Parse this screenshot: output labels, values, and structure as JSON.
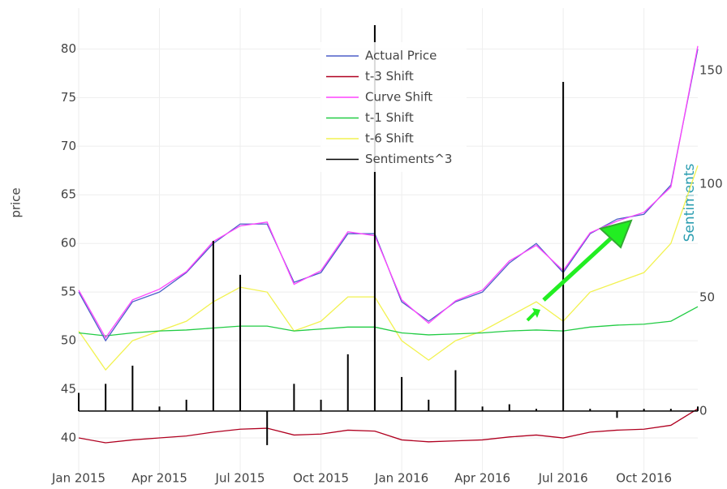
{
  "chart_data": {
    "type": "line",
    "ylabel": "price",
    "y2label": "Sentiments",
    "x": [
      "2015-01",
      "2015-02",
      "2015-03",
      "2015-04",
      "2015-05",
      "2015-06",
      "2015-07",
      "2015-08",
      "2015-09",
      "2015-10",
      "2015-11",
      "2015-12",
      "2016-01",
      "2016-02",
      "2016-03",
      "2016-04",
      "2016-05",
      "2016-06",
      "2016-07",
      "2016-08",
      "2016-09",
      "2016-10",
      "2016-11",
      "2016-12"
    ],
    "xlim": [
      "2015-01",
      "2016-12"
    ],
    "xticks": [
      {
        "value": "2015-01",
        "label": "Jan 2015"
      },
      {
        "value": "2015-04",
        "label": "Apr 2015"
      },
      {
        "value": "2015-07",
        "label": "Jul 2015"
      },
      {
        "value": "2015-10",
        "label": "Oct 2015"
      },
      {
        "value": "2016-01",
        "label": "Jan 2016"
      },
      {
        "value": "2016-04",
        "label": "Apr 2016"
      },
      {
        "value": "2016-07",
        "label": "Jul 2016"
      },
      {
        "value": "2016-10",
        "label": "Oct 2016"
      }
    ],
    "ylim": [
      36.25,
      84.2
    ],
    "yticks": [
      40,
      45,
      50,
      55,
      60,
      65,
      70,
      75,
      80
    ],
    "y2lim": [
      -27.9,
      177.5
    ],
    "y2ticks": [
      0,
      50,
      100,
      150
    ],
    "grid": true,
    "legend": "top",
    "series": [
      {
        "name": "Actual Price",
        "color": "#4d5fc9",
        "values": [
          55,
          50,
          54,
          55,
          57,
          60,
          62,
          62,
          56,
          57,
          61,
          61,
          54,
          52,
          54,
          55,
          58,
          60,
          57,
          61,
          62.5,
          63,
          66,
          80
        ]
      },
      {
        "name": "t-3 Shift",
        "color": "#b00020",
        "values": [
          40,
          39.5,
          39.8,
          40,
          40.2,
          40.6,
          40.9,
          41,
          40.3,
          40.4,
          40.8,
          40.7,
          39.8,
          39.6,
          39.7,
          39.8,
          40.1,
          40.3,
          40,
          40.6,
          40.8,
          40.9,
          41.3,
          43
        ]
      },
      {
        "name": "Curve Shift",
        "color": "#ff44ff",
        "values": [
          55.2,
          50.3,
          54.2,
          55.3,
          57.1,
          60.2,
          61.8,
          62.2,
          55.8,
          57.2,
          61.2,
          60.8,
          54.2,
          51.8,
          54.1,
          55.2,
          58.2,
          59.8,
          57.2,
          61.1,
          62.3,
          63.2,
          65.8,
          80.3
        ]
      },
      {
        "name": "t-1 Shift",
        "color": "#22cc44",
        "values": [
          50.8,
          50.5,
          50.8,
          51,
          51.1,
          51.3,
          51.5,
          51.5,
          51,
          51.2,
          51.4,
          51.4,
          50.8,
          50.6,
          50.7,
          50.8,
          51,
          51.1,
          51,
          51.4,
          51.6,
          51.7,
          52,
          53.5
        ]
      },
      {
        "name": "t-6 Shift",
        "color": "#f2f250",
        "values": [
          51,
          47,
          50,
          51,
          52,
          54,
          55.5,
          55,
          51,
          52,
          54.5,
          54.5,
          50,
          48,
          50,
          51,
          52.5,
          54,
          52,
          55,
          56,
          57,
          60,
          68
        ]
      },
      {
        "name": "Sentiments^3",
        "color": "#000000",
        "axis": "y2",
        "values": [
          8,
          12,
          20,
          2,
          5,
          75,
          60,
          -15,
          12,
          5,
          25,
          170,
          15,
          5,
          18,
          2,
          3,
          1,
          145,
          1,
          -3,
          1,
          1,
          2
        ]
      }
    ]
  }
}
